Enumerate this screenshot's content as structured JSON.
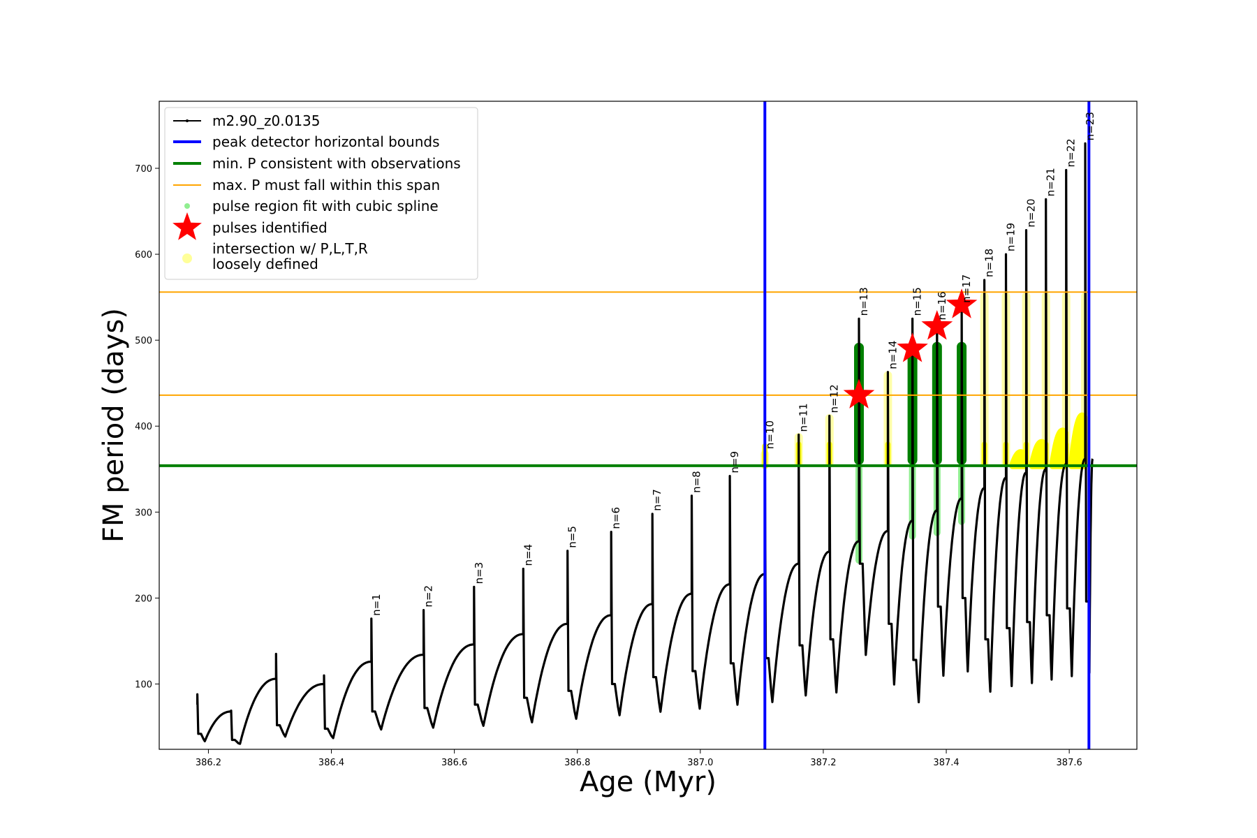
{
  "chart_data": {
    "type": "line",
    "xlabel": "Age (Myr)",
    "ylabel": "FM period (days)",
    "xlim": [
      386.12,
      387.71
    ],
    "ylim": [
      24,
      778
    ],
    "xticks": [
      386.2,
      386.4,
      386.6,
      386.8,
      387.0,
      387.2,
      387.4,
      387.6
    ],
    "xtick_labels": [
      "386.2",
      "386.4",
      "386.6",
      "386.8",
      "387.0",
      "387.2",
      "387.4",
      "387.6"
    ],
    "yticks": [
      100,
      200,
      300,
      400,
      500,
      600,
      700
    ],
    "ytick_labels": [
      "100",
      "200",
      "300",
      "400",
      "500",
      "600",
      "700"
    ],
    "grid": false,
    "legend_position": "top-left",
    "legend": [
      {
        "label": "m2.90_z0.0135",
        "marker": "line-dot",
        "color": "#000000"
      },
      {
        "label": "peak detector horizontal bounds",
        "marker": "line",
        "color": "#0000ff"
      },
      {
        "label": "min. P consistent with observations",
        "marker": "line",
        "color": "#008000"
      },
      {
        "label": "max. P must fall within this span",
        "marker": "line",
        "color": "#ffa500"
      },
      {
        "label": "pulse region fit with cubic spline",
        "marker": "dot",
        "color": "#90ee90"
      },
      {
        "label": "pulses identified",
        "marker": "star",
        "color": "#ff0000"
      },
      {
        "label": "intersection w/ P,L,T,R",
        "label2": "loosely defined",
        "marker": "dot",
        "color": "#ffff99"
      }
    ],
    "vlines": [
      {
        "x": 387.105,
        "color": "#0000ff"
      },
      {
        "x": 387.632,
        "color": "#0000ff"
      }
    ],
    "hlines": [
      {
        "y": 354,
        "color": "#008000"
      },
      {
        "y": 436,
        "color": "#ffa500"
      },
      {
        "y": 556,
        "color": "#ffa500"
      }
    ],
    "pulses": [
      {
        "x": 386.182,
        "top": 88,
        "pre": 80,
        "post": 42
      },
      {
        "x": 386.237,
        "top": 69,
        "pre": 68,
        "post": 35
      },
      {
        "x": 386.31,
        "top": 135,
        "pre": 106,
        "post": 52
      },
      {
        "x": 386.388,
        "top": 110,
        "pre": 100,
        "post": 48
      },
      {
        "x": 386.465,
        "top": 176,
        "pre": 126,
        "post": 68,
        "label": "n=1"
      },
      {
        "x": 386.55,
        "top": 186,
        "pre": 134,
        "post": 72,
        "label": "n=2"
      },
      {
        "x": 386.632,
        "top": 213,
        "pre": 146,
        "post": 76,
        "label": "n=3"
      },
      {
        "x": 386.712,
        "top": 234,
        "pre": 158,
        "post": 84,
        "label": "n=4"
      },
      {
        "x": 386.784,
        "top": 255,
        "pre": 170,
        "post": 92,
        "label": "n=5"
      },
      {
        "x": 386.855,
        "top": 277,
        "pre": 180,
        "post": 100,
        "label": "n=6"
      },
      {
        "x": 386.922,
        "top": 298,
        "pre": 193,
        "post": 108,
        "label": "n=7"
      },
      {
        "x": 386.986,
        "top": 319,
        "pre": 205,
        "post": 115,
        "label": "n=8"
      },
      {
        "x": 387.048,
        "top": 342,
        "pre": 216,
        "post": 124,
        "label": "n=9"
      },
      {
        "x": 387.105,
        "top": 370,
        "pre": 228,
        "post": 130,
        "label": "n=10",
        "yellow": [
          350,
          372
        ]
      },
      {
        "x": 387.16,
        "top": 390,
        "pre": 240,
        "post": 145,
        "label": "n=11",
        "yellow": [
          352,
          392
        ]
      },
      {
        "x": 387.21,
        "top": 412,
        "pre": 254,
        "post": 152,
        "label": "n=12",
        "yellow": [
          352,
          414
        ]
      },
      {
        "x": 387.258,
        "top": 525,
        "pre": 266,
        "post": 240,
        "label": "n=13",
        "dark": [
          355,
          497
        ],
        "light": [
          240,
          355
        ],
        "star": 436
      },
      {
        "x": 387.305,
        "top": 463,
        "pre": 278,
        "post": 170,
        "label": "n=14",
        "yellow": [
          352,
          464
        ]
      },
      {
        "x": 387.345,
        "top": 525,
        "pre": 290,
        "post": 128,
        "label": "n=15",
        "dark": [
          355,
          498
        ],
        "light": [
          268,
          355
        ],
        "star": 490
      },
      {
        "x": 387.385,
        "top": 520,
        "pre": 302,
        "post": 190,
        "label": "n=16",
        "dark": [
          355,
          498
        ],
        "light": [
          272,
          355
        ],
        "star": 516
      },
      {
        "x": 387.425,
        "top": 540,
        "pre": 316,
        "post": 200,
        "label": "n=17",
        "dark": [
          355,
          498
        ],
        "light": [
          285,
          355
        ],
        "star": 541
      },
      {
        "x": 387.462,
        "top": 570,
        "pre": 328,
        "post": 152,
        "label": "n=18",
        "yellow": [
          352,
          556
        ]
      },
      {
        "x": 387.497,
        "top": 600,
        "pre": 340,
        "post": 165,
        "label": "n=19",
        "yellow": [
          352,
          556
        ]
      },
      {
        "x": 387.53,
        "top": 628,
        "pre": 346,
        "post": 172,
        "label": "n=20",
        "yellow": [
          352,
          556
        ],
        "blob": 365
      },
      {
        "x": 387.562,
        "top": 664,
        "pre": 350,
        "post": 180,
        "label": "n=21",
        "yellow": [
          352,
          556
        ],
        "blob": 378
      },
      {
        "x": 387.595,
        "top": 698,
        "pre": 356,
        "post": 188,
        "label": "n=22",
        "yellow": [
          352,
          556
        ],
        "blob": 392
      },
      {
        "x": 387.626,
        "top": 729,
        "pre": 362,
        "post": 196,
        "label": "n=23",
        "yellow": [
          352,
          556
        ],
        "blob": 410
      }
    ]
  }
}
